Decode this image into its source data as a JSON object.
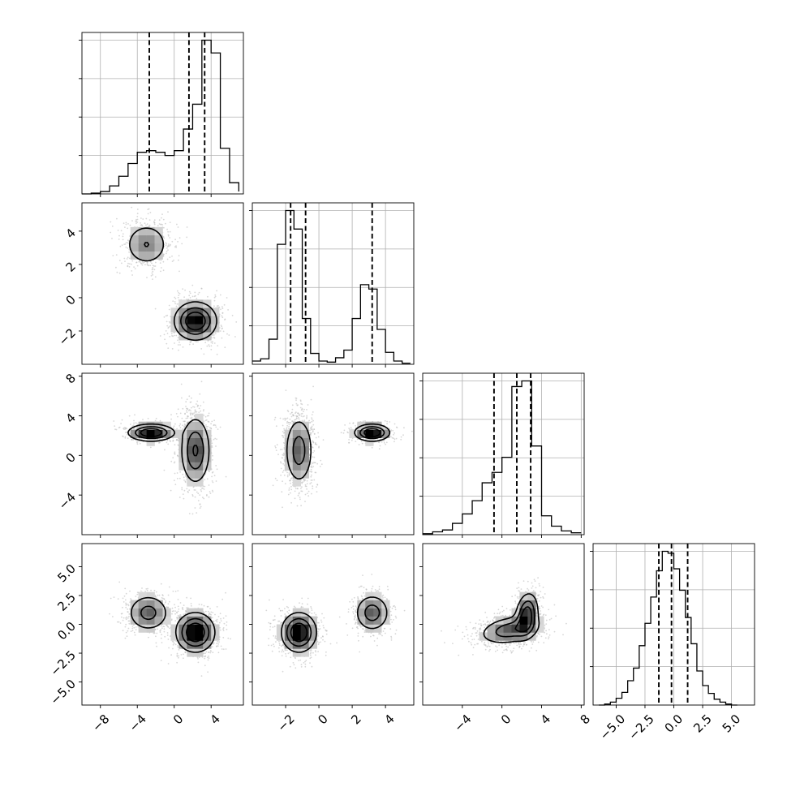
{
  "chart_data": {
    "type": "corner",
    "title": "",
    "parameters": [
      {
        "ticks": [
          -8,
          -4,
          0,
          4
        ],
        "tick_labels": [
          "−8",
          "−4",
          "0",
          "4"
        ],
        "range": [
          -10,
          7.5
        ]
      },
      {
        "ticks": [
          -2,
          0,
          2,
          4
        ],
        "tick_labels": [
          "−2",
          "0",
          "2",
          "4"
        ],
        "range": [
          -4,
          5.7
        ]
      },
      {
        "ticks": [
          -4,
          0,
          4,
          8
        ],
        "tick_labels": [
          "−4",
          "0",
          "4",
          "8"
        ],
        "range": [
          -8,
          8.3
        ]
      },
      {
        "ticks": [
          -5,
          -2.5,
          0,
          2.5,
          5
        ],
        "tick_labels": [
          "−5.0",
          "−2.5",
          "0.0",
          "2.5",
          "5.0"
        ],
        "range": [
          -7,
          7
        ]
      }
    ],
    "histograms": [
      {
        "edges": [
          -10,
          -9,
          -8,
          -7,
          -6,
          -5,
          -4,
          -3,
          -2,
          -1,
          0,
          1,
          2,
          3,
          4,
          5,
          6,
          7
        ],
        "counts": [
          0,
          1,
          3,
          10,
          22,
          38,
          52,
          54,
          52,
          48,
          54,
          81,
          112,
          192,
          176,
          57,
          14,
          3
        ],
        "quantiles": [
          -2.7,
          1.6,
          3.3
        ]
      },
      {
        "edges": [
          -4,
          -3.5,
          -3,
          -2.5,
          -2,
          -1.5,
          -1,
          -0.5,
          0,
          0.5,
          1,
          1.5,
          2,
          2.5,
          3,
          3.5,
          4,
          4.5,
          5,
          5.5
        ],
        "counts": [
          3,
          5,
          23,
          110,
          141,
          124,
          42,
          10,
          3,
          2,
          6,
          13,
          42,
          73,
          69,
          32,
          11,
          3,
          1
        ],
        "quantiles": [
          -1.7,
          -0.8,
          3.2
        ]
      },
      {
        "edges": [
          -8,
          -7,
          -6,
          -5,
          -4,
          -3,
          -2,
          -1,
          0,
          1,
          2,
          3,
          4,
          5,
          6,
          7,
          8
        ],
        "counts": [
          1,
          3,
          5,
          12,
          22,
          36,
          55,
          66,
          82,
          157,
          163,
          94,
          20,
          9,
          4,
          2
        ],
        "quantiles": [
          -0.8,
          1.5,
          2.9
        ]
      },
      {
        "edges": [
          -6.5,
          -6,
          -5.5,
          -5,
          -4.5,
          -4,
          -3.5,
          -3,
          -2.5,
          -2,
          -1.5,
          -1,
          -0.5,
          0,
          0.5,
          1,
          1.5,
          2,
          2.5,
          3,
          3.5,
          4,
          4.5,
          5,
          5.5
        ],
        "counts": [
          0,
          1,
          3,
          7,
          13,
          25,
          38,
          61,
          84,
          111,
          138,
          158,
          156,
          140,
          118,
          90,
          63,
          35,
          20,
          12,
          6,
          3,
          1,
          0
        ],
        "quantiles": [
          -1.3,
          -0.2,
          1.2
        ]
      }
    ],
    "pair_panels": [
      {
        "x": 0,
        "y": 1,
        "blobs": [
          {
            "cx": -3.0,
            "cy": 3.2,
            "sx": 1.3,
            "sy": 0.7,
            "rho": 0.0,
            "w": 0.35
          },
          {
            "cx": 2.3,
            "cy": -1.4,
            "sx": 1.2,
            "sy": 0.6,
            "rho": 0.0,
            "w": 0.65
          }
        ]
      },
      {
        "x": 0,
        "y": 2,
        "blobs": [
          {
            "cx": -2.5,
            "cy": 2.3,
            "sx": 1.3,
            "sy": 0.45,
            "rho": 0.0,
            "w": 0.35
          },
          {
            "cx": 2.3,
            "cy": 0.5,
            "sx": 0.85,
            "sy": 1.8,
            "rho": 0.0,
            "w": 0.65
          }
        ]
      },
      {
        "x": 1,
        "y": 2,
        "blobs": [
          {
            "cx": -1.2,
            "cy": 0.5,
            "sx": 0.45,
            "sy": 1.8,
            "rho": 0.0,
            "w": 0.65
          },
          {
            "cx": 3.2,
            "cy": 2.3,
            "sx": 0.55,
            "sy": 0.45,
            "rho": 0.0,
            "w": 0.35
          }
        ]
      },
      {
        "x": 0,
        "y": 3,
        "blobs": [
          {
            "cx": -2.8,
            "cy": 1.0,
            "sx": 1.2,
            "sy": 0.85,
            "rho": 0.0,
            "w": 0.35
          },
          {
            "cx": 2.3,
            "cy": -0.7,
            "sx": 1.1,
            "sy": 0.9,
            "rho": 0.0,
            "w": 0.65
          }
        ]
      },
      {
        "x": 1,
        "y": 3,
        "blobs": [
          {
            "cx": -1.2,
            "cy": -0.7,
            "sx": 0.55,
            "sy": 0.9,
            "rho": 0.0,
            "w": 0.65
          },
          {
            "cx": 3.2,
            "cy": 1.0,
            "sx": 0.55,
            "sy": 0.85,
            "rho": 0.0,
            "w": 0.35
          }
        ]
      },
      {
        "x": 2,
        "y": 3,
        "blobs": [
          {
            "cx": 0.8,
            "cy": -0.5,
            "sx": 1.6,
            "sy": 0.65,
            "rho": 0.3,
            "w": 0.55
          },
          {
            "cx": 2.5,
            "cy": 0.8,
            "sx": 0.6,
            "sy": 1.0,
            "rho": 0.2,
            "w": 0.45
          }
        ]
      }
    ],
    "grid": true,
    "legend": "none",
    "colors": {
      "line": "#000000",
      "grid": "#b0b0b0",
      "scatter": "#bdbdbd",
      "density_max": "#000000"
    }
  }
}
